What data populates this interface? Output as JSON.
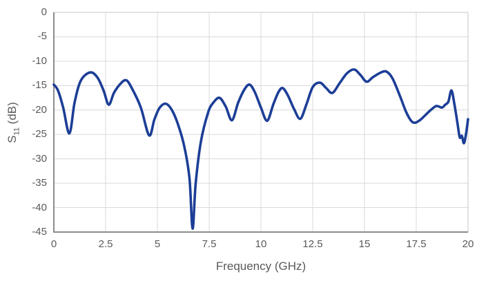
{
  "chart_data": {
    "type": "line",
    "title": "",
    "xlabel": "Frequency (GHz)",
    "ylabel": {
      "base": "S",
      "sub": "11",
      "rest": " (dB)"
    },
    "xlim": [
      0,
      20
    ],
    "ylim": [
      -45,
      0
    ],
    "grid": true,
    "legend_position": "none",
    "x_ticks": [
      "0",
      "2.5",
      "5",
      "7.5",
      "10",
      "12.5",
      "15",
      "17.5",
      "20"
    ],
    "x_tick_values": [
      0,
      2.5,
      5,
      7.5,
      10,
      12.5,
      15,
      17.5,
      20
    ],
    "y_ticks": [
      "0",
      "-5",
      "-10",
      "-15",
      "-20",
      "-25",
      "-30",
      "-35",
      "-40",
      "-45"
    ],
    "y_tick_values": [
      0,
      -5,
      -10,
      -15,
      -20,
      -25,
      -30,
      -35,
      -40,
      -45
    ],
    "colors": {
      "line": "#1c3e96",
      "grid": "#d9d9d9",
      "axis": "#8c8c8c",
      "tick_text": "#595959",
      "background": "#ffffff"
    },
    "series": [
      {
        "name": "S11",
        "color": "#1c3e96",
        "x": [
          0,
          0.2,
          0.45,
          0.75,
          1.0,
          1.3,
          1.75,
          2.1,
          2.4,
          2.65,
          2.9,
          3.2,
          3.5,
          3.8,
          4.2,
          4.6,
          4.85,
          5.1,
          5.4,
          5.7,
          6.0,
          6.3,
          6.55,
          6.7,
          6.85,
          7.1,
          7.45,
          7.7,
          8.0,
          8.3,
          8.6,
          8.9,
          9.2,
          9.45,
          9.7,
          10.0,
          10.3,
          10.6,
          10.85,
          11.05,
          11.3,
          11.6,
          11.9,
          12.2,
          12.5,
          12.85,
          13.15,
          13.45,
          13.8,
          14.15,
          14.5,
          14.8,
          15.1,
          15.4,
          15.75,
          16.05,
          16.35,
          16.7,
          17.0,
          17.25,
          17.45,
          17.7,
          17.95,
          18.2,
          18.45,
          18.6,
          18.75,
          18.9,
          19.05,
          19.2,
          19.35,
          19.5,
          19.6,
          19.7,
          19.8,
          19.9,
          20.0
        ],
        "y": [
          -14.8,
          -16.0,
          -19.5,
          -24.8,
          -18.5,
          -14.0,
          -12.3,
          -13.3,
          -16.0,
          -18.9,
          -16.5,
          -14.7,
          -13.9,
          -15.8,
          -19.5,
          -25.2,
          -22.0,
          -19.6,
          -18.7,
          -20.0,
          -23.0,
          -27.5,
          -34.0,
          -44.3,
          -35.0,
          -26.5,
          -20.5,
          -18.5,
          -17.5,
          -19.3,
          -22.1,
          -18.5,
          -15.8,
          -14.8,
          -16.3,
          -19.5,
          -22.2,
          -18.8,
          -16.3,
          -15.5,
          -17.0,
          -19.8,
          -21.8,
          -18.8,
          -15.3,
          -14.4,
          -15.5,
          -16.5,
          -14.5,
          -12.5,
          -11.7,
          -12.8,
          -14.2,
          -13.3,
          -12.4,
          -12.1,
          -13.5,
          -17.0,
          -20.3,
          -22.2,
          -22.6,
          -22.0,
          -21.0,
          -20.0,
          -19.2,
          -19.3,
          -19.5,
          -18.9,
          -18.3,
          -16.0,
          -19.0,
          -23.0,
          -25.6,
          -25.3,
          -26.8,
          -25.0,
          -21.9
        ]
      }
    ]
  }
}
